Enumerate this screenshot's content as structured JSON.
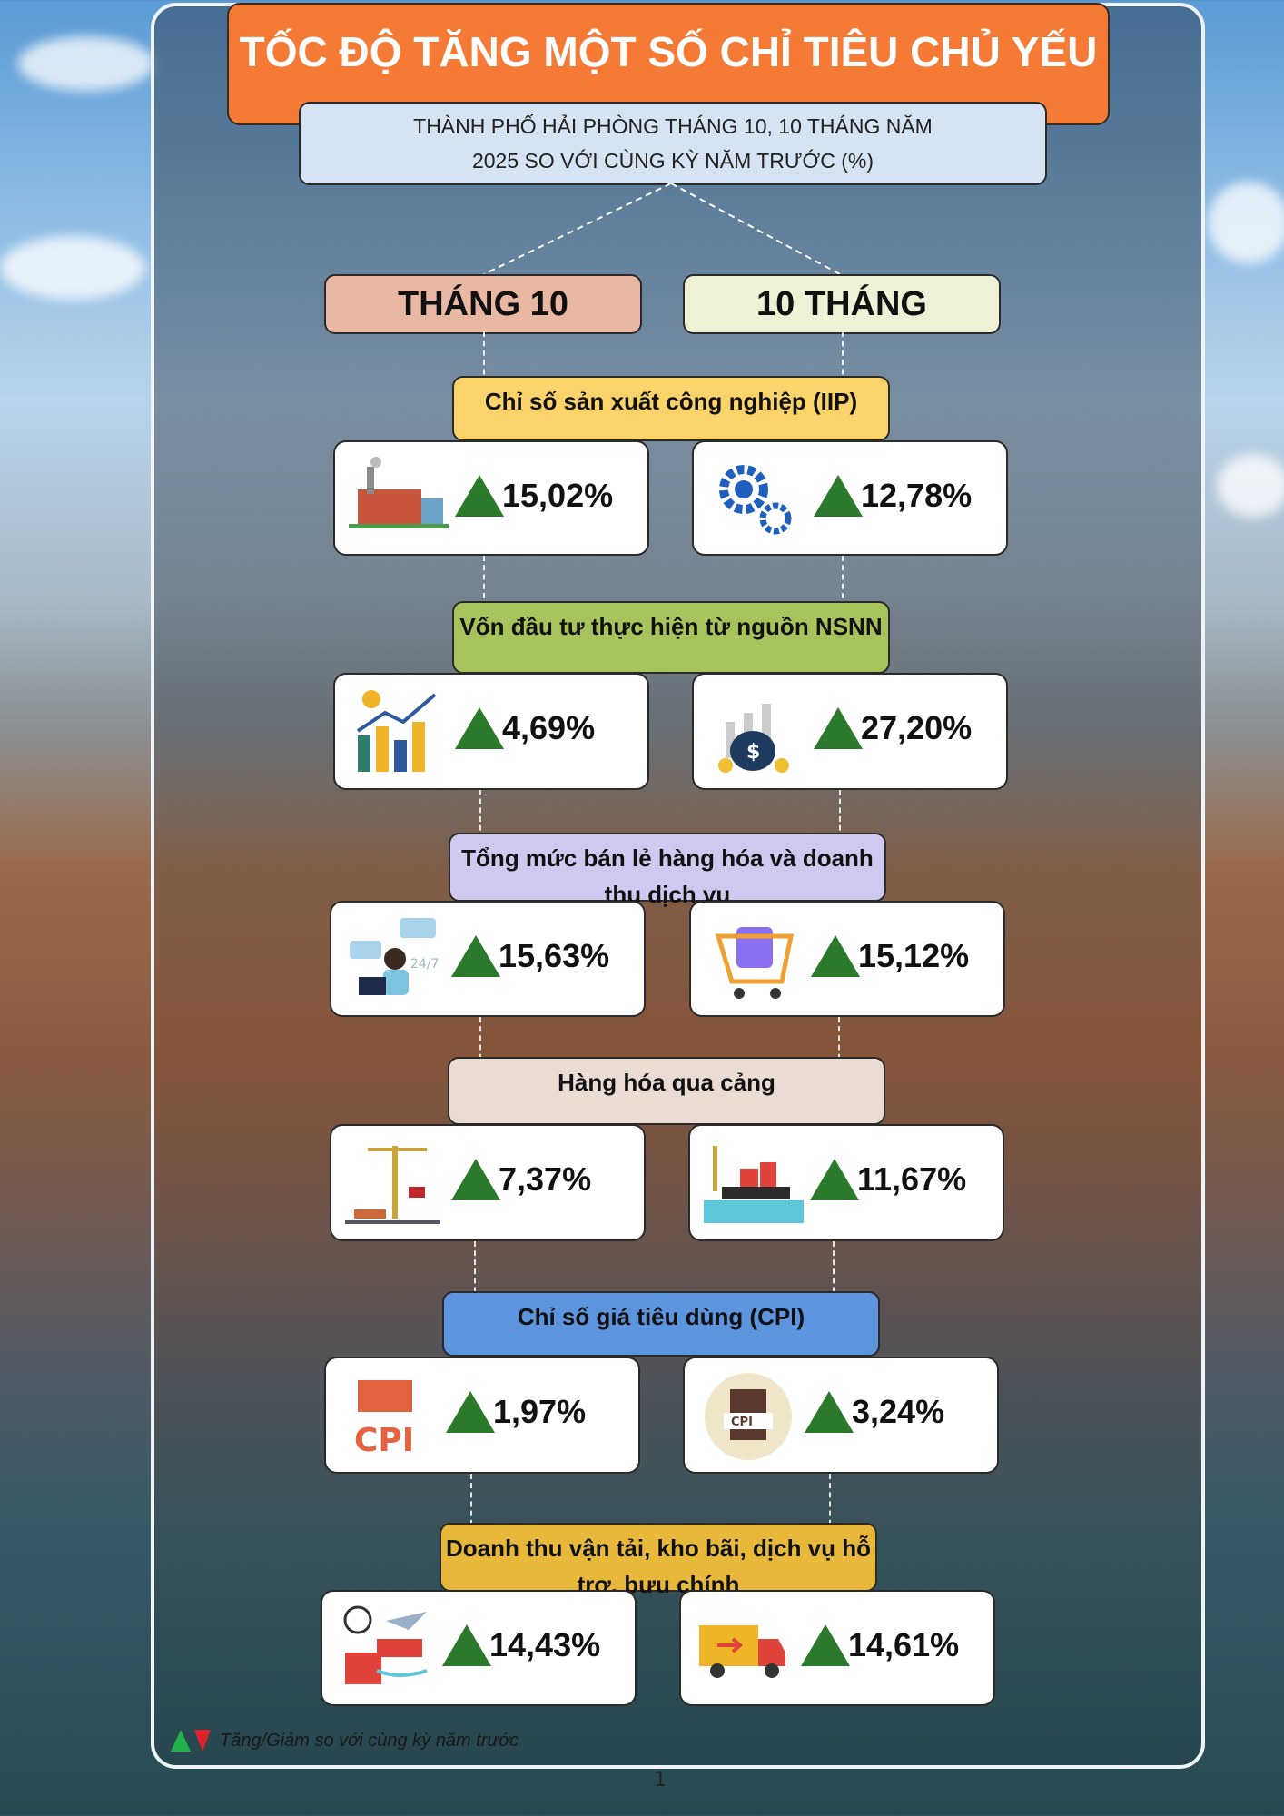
{
  "title": "TỐC ĐỘ TĂNG MỘT SỐ CHỈ TIÊU CHỦ YẾU",
  "subtitle_line1": "THÀNH PHỐ HẢI PHÒNG THÁNG 10, 10 THÁNG NĂM",
  "subtitle_line2": "2025 SO VỚI CÙNG KỲ NĂM TRƯỚC (%)",
  "columns": [
    "THÁNG 10",
    "10 THÁNG"
  ],
  "indicators": [
    {
      "label": "Chỉ số sản xuất công nghiệp (IIP)",
      "color": "#fbd36b",
      "month": {
        "value": "15,02%",
        "trend": "up",
        "icon": "factory-icon"
      },
      "ytd": {
        "value": "12,78%",
        "trend": "up",
        "icon": "gears-icon"
      }
    },
    {
      "label": "Vốn đầu tư thực hiện từ nguồn NSNN",
      "color": "#a6c35c",
      "month": {
        "value": "4,69%",
        "trend": "up",
        "icon": "growth-buildings-icon"
      },
      "ytd": {
        "value": "27,20%",
        "trend": "up",
        "icon": "money-bag-chart-icon"
      }
    },
    {
      "label": "Tổng mức bán lẻ hàng hóa và doanh thu dịch vụ",
      "color": "#cfc9f0",
      "month": {
        "value": "15,63%",
        "trend": "up",
        "icon": "customer-service-icon"
      },
      "ytd": {
        "value": "15,12%",
        "trend": "up",
        "icon": "shopping-cart-icon"
      }
    },
    {
      "label": "Hàng hóa qua cảng",
      "color": "#eadcd3",
      "month": {
        "value": "7,37%",
        "trend": "up",
        "icon": "port-crane-icon"
      },
      "ytd": {
        "value": "11,67%",
        "trend": "up",
        "icon": "cargo-ship-icon"
      }
    },
    {
      "label": "Chỉ số giá tiêu dùng (CPI)",
      "color": "#5d94de",
      "month": {
        "value": "1,97%",
        "trend": "up",
        "icon": "cpi-icon"
      },
      "ytd": {
        "value": "3,24%",
        "trend": "up",
        "icon": "cpi-document-icon"
      }
    },
    {
      "label": "Doanh thu vận tải, kho bãi, dịch vụ hỗ trợ, bưu chính",
      "color": "#e8b83a",
      "month": {
        "value": "14,43%",
        "trend": "up",
        "icon": "logistics-icon"
      },
      "ytd": {
        "value": "14,61%",
        "trend": "up",
        "icon": "delivery-truck-icon"
      }
    }
  ],
  "colors": {
    "title_bg": "#f47a36",
    "subtitle_bg": "#d5e3f3",
    "col1_bg": "#e9b8a5",
    "col2_bg": "#eef1d6",
    "up": "#2b7a2b"
  },
  "legend": "Tăng/Giảm so với cùng kỳ năm trước",
  "page_number": "1"
}
